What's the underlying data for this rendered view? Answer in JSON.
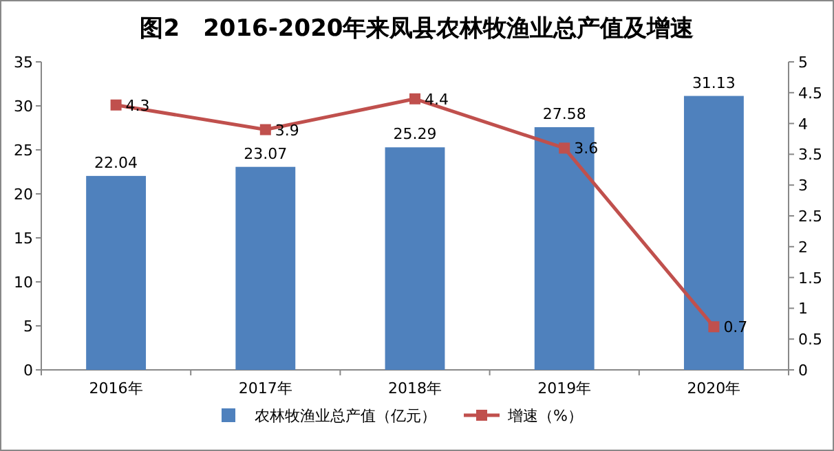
{
  "chart_data": {
    "type": "bar",
    "title": "图2　2016-2020年来凤县农林牧渔业总产值及增速",
    "categories": [
      "2016年",
      "2017年",
      "2018年",
      "2019年",
      "2020年"
    ],
    "series": [
      {
        "name": "农林牧渔业总产值（亿元）",
        "color": "#4f81bd",
        "values": [
          22.04,
          23.07,
          25.29,
          27.58,
          31.13
        ]
      },
      {
        "name": "增速（%）",
        "color": "#c0504d",
        "type": "line",
        "axis": "y2",
        "values": [
          4.3,
          3.9,
          4.4,
          3.6,
          0.7
        ]
      }
    ],
    "ylim": [
      0,
      35
    ],
    "yticks": [
      0,
      5,
      10,
      15,
      20,
      25,
      30,
      35
    ],
    "y2lim": [
      0,
      5
    ],
    "y2ticks": [
      0,
      0.5,
      1,
      1.5,
      2,
      2.5,
      3,
      3.5,
      4,
      4.5,
      5
    ],
    "data_labels": true,
    "legend": "bottom",
    "marker": "square",
    "line_style": "solid"
  }
}
